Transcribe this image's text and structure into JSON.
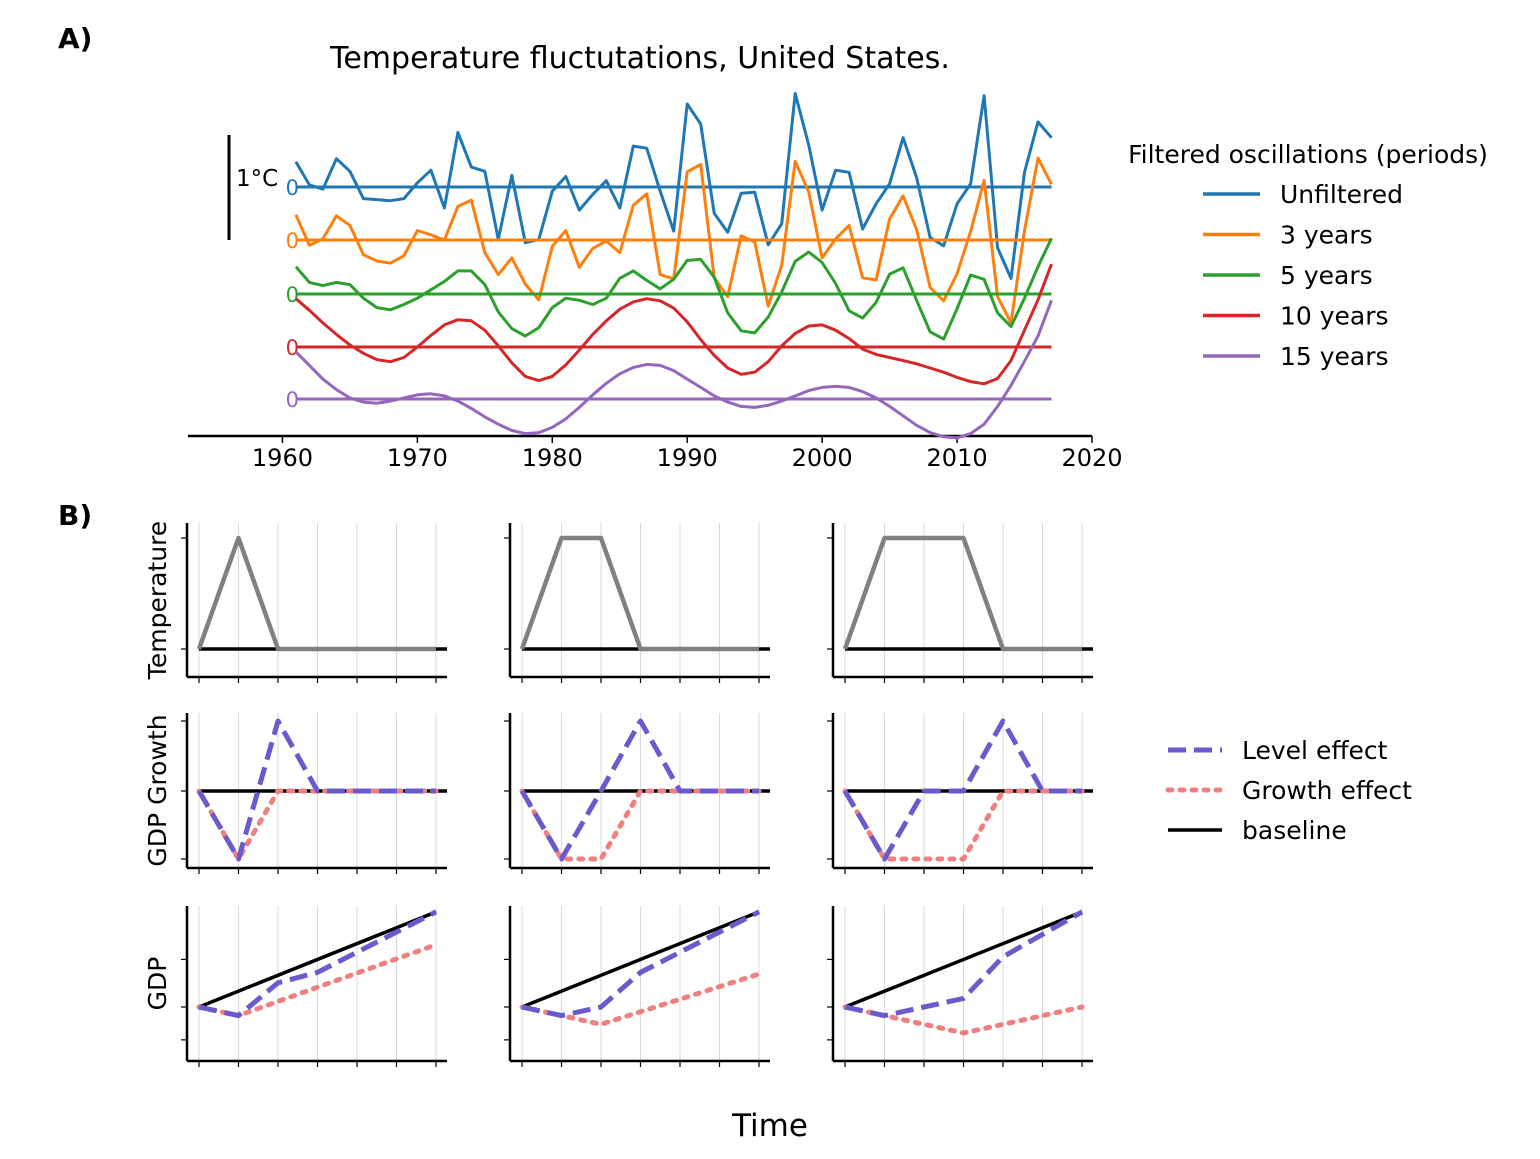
{
  "panel_labels": {
    "a": "A)",
    "b": "B)"
  },
  "chart_data": [
    {
      "type": "line",
      "title": "Temperature fluctutations, United States.",
      "xlabel": "",
      "ylabel": "",
      "xlim": [
        1953,
        2020
      ],
      "x_ticks": [
        1960,
        1970,
        1980,
        1990,
        2000,
        2010,
        2020
      ],
      "scale_bar_label": "1°C",
      "offset_zero_label": "0",
      "legend_title": "Filtered oscillations (periods)",
      "legend_position": "right",
      "grid": false,
      "x": [
        1961,
        1962,
        1963,
        1964,
        1965,
        1966,
        1967,
        1968,
        1969,
        1970,
        1971,
        1972,
        1973,
        1974,
        1975,
        1976,
        1977,
        1978,
        1979,
        1980,
        1981,
        1982,
        1983,
        1984,
        1985,
        1986,
        1987,
        1988,
        1989,
        1990,
        1991,
        1992,
        1993,
        1994,
        1995,
        1996,
        1997,
        1998,
        1999,
        2000,
        2001,
        2002,
        2003,
        2004,
        2005,
        2006,
        2007,
        2008,
        2009,
        2010,
        2011,
        2012,
        2013,
        2014,
        2015,
        2016,
        2017
      ],
      "series": [
        {
          "name": "Unfiltered",
          "color": "#1f77b4",
          "values": [
            0.24,
            0.02,
            -0.02,
            0.27,
            0.15,
            -0.11,
            -0.12,
            -0.13,
            -0.11,
            0.04,
            0.16,
            -0.2,
            0.52,
            0.19,
            0.15,
            -0.5,
            0.11,
            -0.53,
            -0.5,
            -0.04,
            0.1,
            -0.22,
            -0.07,
            0.06,
            -0.2,
            0.39,
            0.37,
            -0.04,
            -0.42,
            0.79,
            0.6,
            -0.25,
            -0.43,
            -0.06,
            -0.05,
            -0.55,
            -0.35,
            0.89,
            0.4,
            -0.22,
            0.16,
            0.14,
            -0.4,
            -0.16,
            0.03,
            0.47,
            0.09,
            -0.48,
            -0.56,
            -0.16,
            0.03,
            0.87,
            -0.58,
            -0.87,
            0.14,
            0.62,
            0.47
          ]
        },
        {
          "name": "3 years",
          "color": "#ff7f0e",
          "values": [
            0.24,
            -0.05,
            0.01,
            0.23,
            0.14,
            -0.14,
            -0.2,
            -0.22,
            -0.15,
            0.09,
            0.05,
            0.0,
            0.32,
            0.38,
            -0.12,
            -0.33,
            -0.17,
            -0.42,
            -0.57,
            -0.06,
            0.09,
            -0.26,
            -0.08,
            -0.01,
            -0.12,
            0.33,
            0.44,
            -0.33,
            -0.37,
            0.65,
            0.72,
            -0.36,
            -0.54,
            0.04,
            -0.02,
            -0.63,
            -0.24,
            0.75,
            0.46,
            -0.17,
            0.01,
            0.14,
            -0.36,
            -0.38,
            0.2,
            0.42,
            0.1,
            -0.45,
            -0.58,
            -0.32,
            0.08,
            0.57,
            -0.54,
            -0.79,
            0.09,
            0.78,
            0.53
          ]
        },
        {
          "name": "5 years",
          "color": "#2ca02c",
          "values": [
            0.26,
            0.11,
            0.08,
            0.11,
            0.09,
            -0.04,
            -0.13,
            -0.15,
            -0.1,
            -0.04,
            0.04,
            0.12,
            0.22,
            0.22,
            0.09,
            -0.17,
            -0.33,
            -0.4,
            -0.32,
            -0.13,
            -0.04,
            -0.06,
            -0.1,
            -0.04,
            0.15,
            0.22,
            0.13,
            0.05,
            0.14,
            0.32,
            0.33,
            0.16,
            -0.18,
            -0.35,
            -0.37,
            -0.22,
            0.02,
            0.31,
            0.4,
            0.3,
            0.1,
            -0.16,
            -0.23,
            -0.08,
            0.19,
            0.25,
            -0.06,
            -0.36,
            -0.43,
            -0.14,
            0.18,
            0.14,
            -0.18,
            -0.31,
            -0.04,
            0.26,
            0.53
          ]
        },
        {
          "name": "10 years",
          "color": "#d62728",
          "values": [
            0.46,
            0.35,
            0.23,
            0.12,
            0.02,
            -0.06,
            -0.12,
            -0.14,
            -0.1,
            0.0,
            0.11,
            0.21,
            0.26,
            0.25,
            0.16,
            0.01,
            -0.15,
            -0.28,
            -0.32,
            -0.28,
            -0.17,
            -0.03,
            0.12,
            0.25,
            0.36,
            0.43,
            0.46,
            0.44,
            0.37,
            0.24,
            0.07,
            -0.08,
            -0.2,
            -0.26,
            -0.24,
            -0.14,
            0.01,
            0.13,
            0.2,
            0.21,
            0.16,
            0.08,
            -0.02,
            -0.07,
            -0.1,
            -0.13,
            -0.16,
            -0.2,
            -0.24,
            -0.29,
            -0.33,
            -0.35,
            -0.3,
            -0.13,
            0.16,
            0.45,
            0.79
          ]
        },
        {
          "name": "15 years",
          "color": "#9467bd",
          "values": [
            0.45,
            0.32,
            0.19,
            0.09,
            0.01,
            -0.03,
            -0.04,
            -0.02,
            0.01,
            0.04,
            0.05,
            0.03,
            -0.02,
            -0.09,
            -0.17,
            -0.24,
            -0.3,
            -0.33,
            -0.32,
            -0.27,
            -0.19,
            -0.08,
            0.04,
            0.15,
            0.24,
            0.3,
            0.33,
            0.32,
            0.27,
            0.19,
            0.11,
            0.03,
            -0.03,
            -0.07,
            -0.08,
            -0.06,
            -0.02,
            0.03,
            0.08,
            0.11,
            0.12,
            0.11,
            0.07,
            0.01,
            -0.07,
            -0.16,
            -0.25,
            -0.32,
            -0.36,
            -0.37,
            -0.33,
            -0.24,
            -0.07,
            0.13,
            0.36,
            0.6,
            0.94
          ]
        }
      ]
    },
    {
      "type": "line",
      "title": "",
      "xlabel": "Time",
      "row_labels": [
        "Temperature",
        "GDP Growth",
        "GDP"
      ],
      "grid": true,
      "legend_position": "right",
      "legend": [
        {
          "name": "Level effect",
          "color": "#6a5acd",
          "style": "dashed"
        },
        {
          "name": "Growth effect",
          "color": "#f08080",
          "style": "dotted"
        },
        {
          "name": "baseline",
          "color": "#000000",
          "style": "solid"
        }
      ],
      "temperature_color": "#808080",
      "columns": [
        {
          "temperature": [
            [
              0,
              0
            ],
            [
              1,
              1
            ],
            [
              2,
              0
            ],
            [
              6,
              0
            ]
          ],
          "gdp_growth_level": [
            [
              0,
              0
            ],
            [
              1,
              -1
            ],
            [
              2,
              1
            ],
            [
              3,
              0
            ],
            [
              6,
              0
            ]
          ],
          "gdp_growth_growth": [
            [
              0,
              0
            ],
            [
              1,
              -1
            ],
            [
              2,
              0
            ],
            [
              6,
              0
            ]
          ],
          "gdp_baseline": [
            [
              0,
              0
            ],
            [
              6,
              1.1
            ]
          ],
          "gdp_level": [
            [
              0,
              0
            ],
            [
              1,
              -0.1
            ],
            [
              2,
              0.28
            ],
            [
              3,
              0.4
            ],
            [
              6,
              1.1
            ]
          ],
          "gdp_growth": [
            [
              0,
              0
            ],
            [
              1,
              -0.1
            ],
            [
              6,
              0.72
            ]
          ]
        },
        {
          "temperature": [
            [
              0,
              0
            ],
            [
              1,
              1
            ],
            [
              2,
              1
            ],
            [
              3,
              0
            ],
            [
              6,
              0
            ]
          ],
          "gdp_growth_level": [
            [
              0,
              0
            ],
            [
              1,
              -1
            ],
            [
              2,
              0
            ],
            [
              3,
              1
            ],
            [
              4,
              0
            ],
            [
              6,
              0
            ]
          ],
          "gdp_growth_growth": [
            [
              0,
              0
            ],
            [
              1,
              -1
            ],
            [
              2,
              -1
            ],
            [
              3,
              0
            ],
            [
              6,
              0
            ]
          ],
          "gdp_baseline": [
            [
              0,
              0
            ],
            [
              6,
              1.1
            ]
          ],
          "gdp_level": [
            [
              0,
              0
            ],
            [
              1,
              -0.1
            ],
            [
              2,
              0.0
            ],
            [
              3,
              0.4
            ],
            [
              6,
              1.1
            ]
          ],
          "gdp_growth": [
            [
              0,
              0
            ],
            [
              1,
              -0.1
            ],
            [
              2,
              -0.2
            ],
            [
              6,
              0.38
            ]
          ]
        },
        {
          "temperature": [
            [
              0,
              0
            ],
            [
              1,
              1
            ],
            [
              2,
              1
            ],
            [
              3,
              1
            ],
            [
              4,
              0
            ],
            [
              6,
              0
            ]
          ],
          "gdp_growth_level": [
            [
              0,
              0
            ],
            [
              1,
              -1
            ],
            [
              2,
              0
            ],
            [
              3,
              0
            ],
            [
              4,
              1
            ],
            [
              5,
              0
            ],
            [
              6,
              0
            ]
          ],
          "gdp_growth_growth": [
            [
              0,
              0
            ],
            [
              1,
              -1
            ],
            [
              2,
              -1
            ],
            [
              3,
              -1
            ],
            [
              4,
              0
            ],
            [
              6,
              0
            ]
          ],
          "gdp_baseline": [
            [
              0,
              0
            ],
            [
              6,
              1.1
            ]
          ],
          "gdp_level": [
            [
              0,
              0
            ],
            [
              1,
              -0.1
            ],
            [
              2,
              0.0
            ],
            [
              3,
              0.1
            ],
            [
              4,
              0.58
            ],
            [
              6,
              1.1
            ]
          ],
          "gdp_growth": [
            [
              0,
              0
            ],
            [
              1,
              -0.1
            ],
            [
              2,
              -0.2
            ],
            [
              3,
              -0.3
            ],
            [
              6,
              0.0
            ]
          ]
        }
      ]
    }
  ]
}
